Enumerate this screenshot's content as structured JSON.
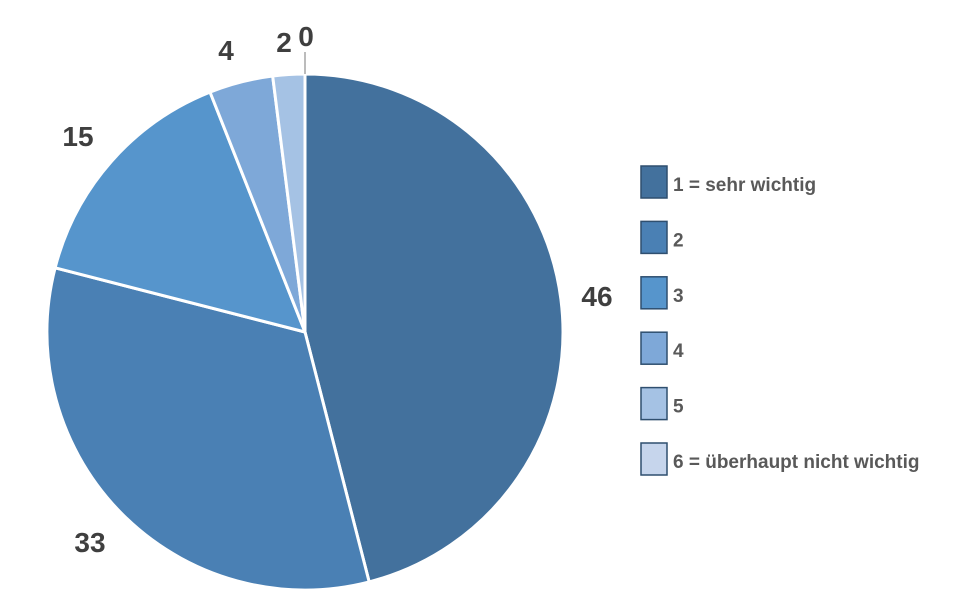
{
  "chart_data": {
    "type": "pie",
    "title": "",
    "start": "12 o'clock",
    "direction": "clockwise",
    "legend_position": "right",
    "slices": [
      {
        "label": "1 = sehr wichtig",
        "value": 46,
        "value_label": "46",
        "color": "#43719d"
      },
      {
        "label": "2",
        "value": 33,
        "value_label": "33",
        "color": "#4a80b4"
      },
      {
        "label": "3",
        "value": 15,
        "value_label": "15",
        "color": "#5695cc"
      },
      {
        "label": "4",
        "value": 4,
        "value_label": "4",
        "color": "#7ea8d8"
      },
      {
        "label": "5",
        "value": 2,
        "value_label": "2",
        "color": "#a5c2e4"
      },
      {
        "label": "6 = überhaupt nicht wichtig",
        "value": 0,
        "value_label": "0",
        "color": "#c6d5ec"
      }
    ]
  }
}
